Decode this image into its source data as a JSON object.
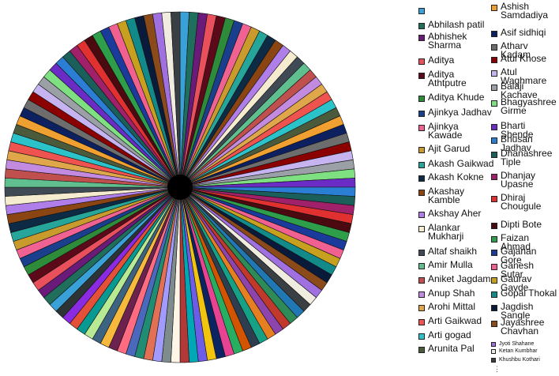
{
  "chart_data": {
    "type": "pie",
    "title": "",
    "legend_position": "right",
    "slice_count": 120,
    "palette": [
      "#1f77b4",
      "#2e8b57",
      "#c0392b",
      "#8e44ad",
      "#e67e22",
      "#16a085",
      "#2c3e50",
      "#d35400",
      "#27ae60",
      "#e84393",
      "#0c2461",
      "#f1c40f",
      "#6c5ce7",
      "#00a8b5",
      "#b33939",
      "#fdf5e6",
      "#7f8c8d",
      "#a29bfe",
      "#e17055",
      "#218c74",
      "#4a69bd",
      "#ff6b81",
      "#6d214f",
      "#f6b93b",
      "#3c6382",
      "#b8e994",
      "#079992",
      "#e55039",
      "#8a2be2",
      "#2d3436"
    ],
    "legend": [
      {
        "label": "",
        "color": "#3aa0d8"
      },
      {
        "label": "Abhilash patil",
        "color": "#1f6f5c"
      },
      {
        "label": "Abhishek\nSharma",
        "color": "#6a1b7a"
      },
      {
        "label": "Aditya",
        "color": "#e8505b"
      },
      {
        "label": "Aditya\nAthtputre",
        "color": "#5c0a1a"
      },
      {
        "label": "Aditya Khude",
        "color": "#2e8b3a"
      },
      {
        "label": "Ajinkya Jadhav",
        "color": "#1a3f8c"
      },
      {
        "label": "Ajinkya\nKawade",
        "color": "#f06292"
      },
      {
        "label": "Ajit Garud",
        "color": "#c89b2c"
      },
      {
        "label": "Akash Gaikwad",
        "color": "#26a69a"
      },
      {
        "label": "Akash Kokne",
        "color": "#0d2b45"
      },
      {
        "label": "Akashay\nKamble",
        "color": "#8b4513"
      },
      {
        "label": "Akshay Aher",
        "color": "#b07ee8"
      },
      {
        "label": "Alankar\nMukharji",
        "color": "#f5ecd0"
      },
      {
        "label": "Altaf shaikh",
        "color": "#404a55"
      },
      {
        "label": "Amir Mulla",
        "color": "#5fbf8f"
      },
      {
        "label": "Aniket Jagdam",
        "color": "#c0504d"
      },
      {
        "label": "Anup Shah",
        "color": "#c38be0"
      },
      {
        "label": "Arohi Mittal",
        "color": "#e0a64a"
      },
      {
        "label": "Arti Gaikwad",
        "color": "#ef5350"
      },
      {
        "label": "Arti gogad",
        "color": "#2cc2c9"
      },
      {
        "label": "Arunita Pal",
        "color": "#4a5a3a"
      },
      {
        "label": "Ashish\nSamdadiya",
        "color": "#f0a030"
      },
      {
        "label": "Asif sidhiqi",
        "color": "#0d2060"
      },
      {
        "label": "Atharv Kadam",
        "color": "#6d6d6d"
      },
      {
        "label": "Atul Khose",
        "color": "#8b0000"
      },
      {
        "label": "Atul Waghmare",
        "color": "#c5b4f0"
      },
      {
        "label": "Balaji Kachave",
        "color": "#9aa0a6"
      },
      {
        "label": "Bhagyashree\nGirme",
        "color": "#7ee081"
      },
      {
        "label": "Bharti Shende",
        "color": "#6a2cc4"
      },
      {
        "label": "Bhusan Jadhav",
        "color": "#2a7fd4"
      },
      {
        "label": "Dhanashree\nTiple",
        "color": "#1a5f5a"
      },
      {
        "label": "Dhanjay\nUpasne",
        "color": "#a0206a"
      },
      {
        "label": "Dhiraj\nChougule",
        "color": "#e03030"
      },
      {
        "label": "Dipti Bote",
        "color": "#4a0a10"
      },
      {
        "label": "Faizan Ahmad",
        "color": "#2e9e4a"
      },
      {
        "label": "Gajanan Gore",
        "color": "#1a3a9c"
      },
      {
        "label": "Ganesh Sutar",
        "color": "#f06090"
      },
      {
        "label": "Gaurav Gavde",
        "color": "#c8a020"
      },
      {
        "label": "Gopal Thokal",
        "color": "#138a8a"
      },
      {
        "label": "Jagdish Sangle",
        "color": "#0a1a3a"
      },
      {
        "label": "Jayashree\nChavhan",
        "color": "#8b4a1a"
      },
      {
        "label": "Jyoti Shahane",
        "color": "#a070e0"
      },
      {
        "label": "Ketan Kumbhar",
        "color": "#f0ece0"
      },
      {
        "label": "Khushbu Kothari",
        "color": "#3a3f44"
      }
    ]
  }
}
